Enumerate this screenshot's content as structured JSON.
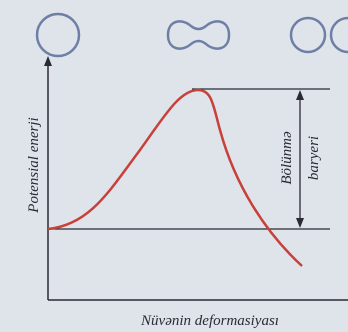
{
  "labels": {
    "y_axis": "Potensial enerji",
    "x_axis": "Nüvənin deformasiyası",
    "barrier_line1": "Bölünmə",
    "barrier_line2": "baryeri"
  }
}
